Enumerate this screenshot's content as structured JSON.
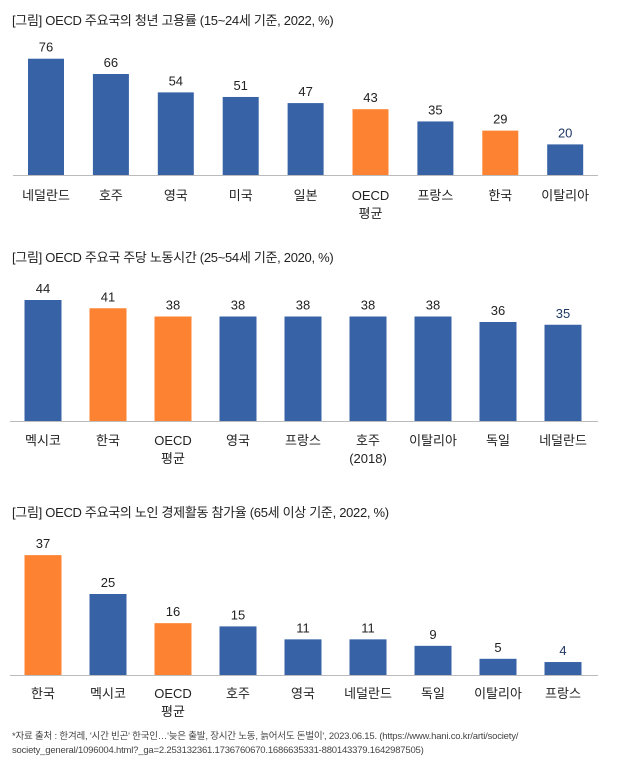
{
  "colors": {
    "blue": "#3762a6",
    "orange": "#fd8332",
    "last_label": "#1f3864"
  },
  "chart_data": [
    {
      "type": "bar",
      "title": "[그림] OECD 주요국의 청년 고용률 (15~24세 기준, 2022, %)",
      "categories": [
        [
          "네덜란드"
        ],
        [
          "호주"
        ],
        [
          "영국"
        ],
        [
          "미국"
        ],
        [
          "일본"
        ],
        [
          "OECD",
          "평균"
        ],
        [
          "프랑스"
        ],
        [
          "한국"
        ],
        [
          "이탈리아"
        ]
      ],
      "values": [
        76,
        66,
        54,
        51,
        47,
        43,
        35,
        29,
        20
      ],
      "highlight": [
        false,
        false,
        false,
        false,
        false,
        true,
        false,
        true,
        false
      ],
      "ylim": [
        0,
        80
      ],
      "grid": false
    },
    {
      "type": "bar",
      "title": "[그림] OECD 주요국 주당 노동시간 (25~54세 기준, 2020, %)",
      "categories": [
        [
          "멕시코"
        ],
        [
          "한국"
        ],
        [
          "OECD",
          "평균"
        ],
        [
          "영국"
        ],
        [
          "프랑스"
        ],
        [
          "호주",
          "(2018)"
        ],
        [
          "이탈리아"
        ],
        [
          "독일"
        ],
        [
          "네덜란드"
        ]
      ],
      "values": [
        44,
        41,
        38,
        38,
        38,
        38,
        38,
        36,
        35
      ],
      "highlight": [
        false,
        true,
        true,
        false,
        false,
        false,
        false,
        false,
        false
      ],
      "ylim": [
        0,
        46
      ],
      "grid": false
    },
    {
      "type": "bar",
      "title": "[그림] OECD 주요국의 노인 경제활동 참가율 (65세 이상 기준, 2022, %)",
      "categories": [
        [
          "한국"
        ],
        [
          "멕시코"
        ],
        [
          "OECD",
          "평균"
        ],
        [
          "호주"
        ],
        [
          "영국"
        ],
        [
          "네덜란드"
        ],
        [
          "독일"
        ],
        [
          "이탈리아"
        ],
        [
          "프랑스"
        ]
      ],
      "values": [
        37,
        25,
        16,
        15,
        11,
        11,
        9,
        5,
        4
      ],
      "highlight": [
        true,
        false,
        true,
        false,
        false,
        false,
        false,
        false,
        false
      ],
      "ylim": [
        0,
        38
      ],
      "grid": false
    }
  ],
  "source": {
    "line1": "*자료 출처 : 한겨레, '시간 빈곤' 한국인…'늦은 출발, 장시간 노동, 늙어서도 돈벌이', 2023.06.15. (https://www.hani.co.kr/arti/society/",
    "line2": "society_general/1096004.html?_ga=2.253132361.1736760670.1686635331-880143379.1642987505)"
  }
}
